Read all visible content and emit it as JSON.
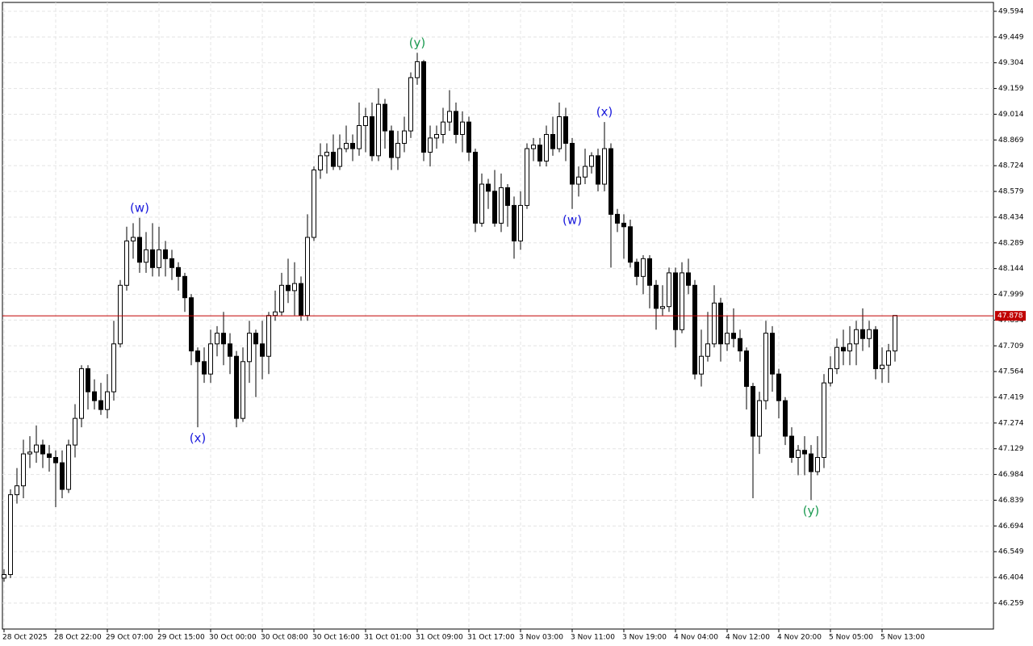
{
  "chart_data": {
    "type": "candlestick",
    "categories": [
      "28 Oct 2025",
      null,
      null,
      null,
      null,
      null,
      null,
      null,
      "28 Oct 22:00",
      null,
      null,
      null,
      null,
      null,
      null,
      null,
      "29 Oct 07:00",
      null,
      null,
      null,
      null,
      null,
      null,
      null,
      "29 Oct 15:00",
      null,
      null,
      null,
      null,
      null,
      null,
      null,
      "30 Oct 00:00",
      null,
      null,
      null,
      null,
      null,
      null,
      null,
      "30 Oct 08:00",
      null,
      null,
      null,
      null,
      null,
      null,
      null,
      "30 Oct 16:00",
      null,
      null,
      null,
      null,
      null,
      null,
      null,
      "31 Oct 01:00",
      null,
      null,
      null,
      null,
      null,
      null,
      null,
      "31 Oct 09:00",
      null,
      null,
      null,
      null,
      null,
      null,
      null,
      "31 Oct 17:00",
      null,
      null,
      null,
      null,
      null,
      null,
      null,
      "3 Nov 03:00",
      null,
      null,
      null,
      null,
      null,
      null,
      null,
      "3 Nov 11:00",
      null,
      null,
      null,
      null,
      null,
      null,
      null,
      "3 Nov 19:00",
      null,
      null,
      null,
      null,
      null,
      null,
      null,
      "4 Nov 04:00",
      null,
      null,
      null,
      null,
      null,
      null,
      null,
      "4 Nov 12:00",
      null,
      null,
      null,
      null,
      null,
      null,
      null,
      "4 Nov 20:00",
      null,
      null,
      null,
      null,
      null,
      null,
      null,
      "5 Nov 05:00",
      null,
      null,
      null,
      null,
      null,
      null,
      null,
      "5 Nov 13:00",
      null,
      null
    ],
    "ohlc": [
      [
        46.4,
        46.45,
        46.38,
        46.42
      ],
      [
        46.42,
        46.9,
        46.4,
        46.87
      ],
      [
        46.87,
        47.02,
        46.82,
        46.92
      ],
      [
        46.92,
        47.18,
        46.85,
        47.1
      ],
      [
        47.1,
        47.2,
        47.02,
        47.11
      ],
      [
        47.11,
        47.26,
        47.05,
        47.15
      ],
      [
        47.15,
        47.18,
        47.02,
        47.1
      ],
      [
        47.1,
        47.15,
        47.0,
        47.08
      ],
      [
        47.08,
        47.12,
        46.8,
        47.05
      ],
      [
        47.05,
        47.12,
        46.85,
        46.9
      ],
      [
        46.9,
        47.18,
        46.88,
        47.15
      ],
      [
        47.15,
        47.38,
        47.08,
        47.3
      ],
      [
        47.3,
        47.6,
        47.25,
        47.58
      ],
      [
        47.58,
        47.6,
        47.35,
        47.45
      ],
      [
        47.45,
        47.52,
        47.35,
        47.4
      ],
      [
        47.4,
        47.5,
        47.32,
        47.35
      ],
      [
        47.35,
        47.55,
        47.3,
        47.45
      ],
      [
        47.45,
        47.85,
        47.4,
        47.72
      ],
      [
        47.72,
        48.08,
        47.7,
        48.05
      ],
      [
        48.05,
        48.38,
        48.02,
        48.3
      ],
      [
        48.3,
        48.4,
        48.2,
        48.32
      ],
      [
        48.32,
        48.43,
        48.12,
        48.18
      ],
      [
        48.18,
        48.35,
        48.12,
        48.25
      ],
      [
        48.25,
        48.4,
        48.1,
        48.15
      ],
      [
        48.15,
        48.38,
        48.1,
        48.25
      ],
      [
        48.25,
        48.3,
        48.1,
        48.2
      ],
      [
        48.2,
        48.25,
        48.08,
        48.15
      ],
      [
        48.15,
        48.18,
        48.02,
        48.1
      ],
      [
        48.1,
        48.12,
        47.9,
        47.98
      ],
      [
        47.98,
        48.0,
        47.6,
        47.68
      ],
      [
        47.68,
        47.7,
        47.25,
        47.62
      ],
      [
        47.62,
        47.7,
        47.5,
        47.55
      ],
      [
        47.55,
        47.8,
        47.5,
        47.72
      ],
      [
        47.72,
        47.82,
        47.65,
        47.78
      ],
      [
        47.78,
        47.9,
        47.6,
        47.72
      ],
      [
        47.72,
        47.78,
        47.55,
        47.65
      ],
      [
        47.65,
        47.68,
        47.25,
        47.3
      ],
      [
        47.3,
        47.7,
        47.28,
        47.62
      ],
      [
        47.62,
        47.85,
        47.5,
        47.78
      ],
      [
        47.78,
        47.8,
        47.42,
        47.72
      ],
      [
        47.72,
        47.85,
        47.52,
        47.65
      ],
      [
        47.65,
        47.9,
        47.55,
        47.88
      ],
      [
        47.88,
        48.02,
        47.85,
        47.9
      ],
      [
        47.9,
        48.12,
        47.88,
        48.05
      ],
      [
        48.05,
        48.2,
        47.95,
        48.02
      ],
      [
        48.02,
        48.18,
        47.88,
        48.06
      ],
      [
        48.06,
        48.1,
        47.85,
        47.88
      ],
      [
        47.88,
        48.45,
        47.85,
        48.32
      ],
      [
        48.32,
        48.72,
        48.3,
        48.7
      ],
      [
        48.7,
        48.85,
        48.65,
        48.78
      ],
      [
        48.78,
        48.85,
        48.68,
        48.8
      ],
      [
        48.8,
        48.9,
        48.7,
        48.72
      ],
      [
        48.72,
        48.9,
        48.7,
        48.82
      ],
      [
        48.82,
        48.95,
        48.8,
        48.85
      ],
      [
        48.85,
        48.9,
        48.75,
        48.82
      ],
      [
        48.82,
        49.08,
        48.78,
        48.95
      ],
      [
        48.95,
        49.05,
        48.8,
        49.0
      ],
      [
        49.0,
        49.08,
        48.75,
        48.78
      ],
      [
        48.78,
        49.16,
        48.75,
        49.07
      ],
      [
        49.07,
        49.1,
        48.82,
        48.92
      ],
      [
        48.92,
        48.95,
        48.7,
        48.77
      ],
      [
        48.77,
        48.92,
        48.7,
        48.85
      ],
      [
        48.85,
        49.0,
        48.8,
        48.92
      ],
      [
        48.92,
        49.25,
        48.88,
        49.22
      ],
      [
        49.22,
        49.36,
        49.18,
        49.31
      ],
      [
        49.31,
        49.32,
        48.75,
        48.8
      ],
      [
        48.8,
        48.95,
        48.72,
        48.88
      ],
      [
        48.88,
        48.95,
        48.82,
        48.9
      ],
      [
        48.9,
        49.05,
        48.85,
        48.97
      ],
      [
        48.97,
        49.15,
        48.92,
        49.03
      ],
      [
        49.03,
        49.08,
        48.85,
        48.9
      ],
      [
        48.9,
        49.03,
        48.8,
        48.97
      ],
      [
        48.97,
        49.0,
        48.75,
        48.8
      ],
      [
        48.8,
        48.82,
        48.35,
        48.4
      ],
      [
        48.4,
        48.68,
        48.38,
        48.62
      ],
      [
        48.62,
        48.65,
        48.48,
        48.58
      ],
      [
        48.58,
        48.7,
        48.38,
        48.4
      ],
      [
        48.4,
        48.68,
        48.35,
        48.6
      ],
      [
        48.6,
        48.62,
        48.38,
        48.5
      ],
      [
        48.5,
        48.55,
        48.2,
        48.3
      ],
      [
        48.3,
        48.58,
        48.25,
        48.5
      ],
      [
        48.5,
        48.85,
        48.48,
        48.82
      ],
      [
        48.82,
        48.88,
        48.75,
        48.84
      ],
      [
        48.84,
        48.88,
        48.72,
        48.75
      ],
      [
        48.75,
        48.95,
        48.72,
        48.9
      ],
      [
        48.9,
        49.0,
        48.78,
        48.82
      ],
      [
        48.82,
        49.08,
        48.8,
        49.0
      ],
      [
        49.0,
        49.05,
        48.75,
        48.85
      ],
      [
        48.85,
        48.88,
        48.48,
        48.62
      ],
      [
        48.62,
        48.72,
        48.55,
        48.66
      ],
      [
        48.66,
        48.82,
        48.62,
        48.72
      ],
      [
        48.72,
        48.8,
        48.68,
        48.78
      ],
      [
        48.78,
        48.82,
        48.58,
        48.62
      ],
      [
        48.62,
        48.97,
        48.58,
        48.82
      ],
      [
        48.82,
        48.85,
        48.15,
        48.45
      ],
      [
        48.45,
        48.48,
        48.35,
        48.4
      ],
      [
        48.4,
        48.45,
        48.2,
        48.38
      ],
      [
        48.38,
        48.42,
        48.15,
        48.18
      ],
      [
        48.18,
        48.2,
        48.05,
        48.1
      ],
      [
        48.1,
        48.22,
        48.0,
        48.2
      ],
      [
        48.2,
        48.22,
        47.92,
        48.05
      ],
      [
        48.05,
        48.08,
        47.8,
        47.92
      ],
      [
        47.92,
        48.05,
        47.88,
        47.93
      ],
      [
        47.93,
        48.15,
        47.9,
        48.12
      ],
      [
        48.12,
        48.15,
        47.7,
        47.8
      ],
      [
        47.8,
        48.18,
        47.78,
        48.12
      ],
      [
        48.12,
        48.2,
        48.0,
        48.05
      ],
      [
        48.05,
        48.08,
        47.52,
        47.55
      ],
      [
        47.55,
        47.8,
        47.48,
        47.65
      ],
      [
        47.65,
        47.9,
        47.62,
        47.72
      ],
      [
        47.72,
        48.05,
        47.7,
        47.95
      ],
      [
        47.95,
        47.98,
        47.62,
        47.72
      ],
      [
        47.72,
        47.88,
        47.68,
        47.78
      ],
      [
        47.78,
        47.92,
        47.7,
        47.75
      ],
      [
        47.75,
        47.8,
        47.62,
        47.68
      ],
      [
        47.68,
        47.7,
        47.35,
        47.48
      ],
      [
        47.48,
        47.5,
        46.85,
        47.2
      ],
      [
        47.2,
        47.45,
        47.1,
        47.4
      ],
      [
        47.4,
        47.85,
        47.35,
        47.78
      ],
      [
        47.78,
        47.82,
        47.45,
        47.55
      ],
      [
        47.55,
        47.58,
        47.3,
        47.4
      ],
      [
        47.4,
        47.42,
        47.15,
        47.2
      ],
      [
        47.2,
        47.25,
        47.05,
        47.08
      ],
      [
        47.08,
        47.15,
        46.98,
        47.12
      ],
      [
        47.12,
        47.2,
        46.98,
        47.1
      ],
      [
        47.1,
        47.15,
        46.84,
        47.0
      ],
      [
        47.0,
        47.2,
        46.98,
        47.08
      ],
      [
        47.08,
        47.55,
        47.02,
        47.5
      ],
      [
        47.5,
        47.65,
        47.48,
        47.58
      ],
      [
        47.58,
        47.75,
        47.55,
        47.7
      ],
      [
        47.7,
        47.8,
        47.6,
        47.68
      ],
      [
        47.68,
        47.82,
        47.6,
        47.72
      ],
      [
        47.72,
        47.85,
        47.6,
        47.8
      ],
      [
        47.8,
        47.92,
        47.68,
        47.75
      ],
      [
        47.75,
        47.85,
        47.7,
        47.8
      ],
      [
        47.8,
        47.82,
        47.52,
        47.58
      ],
      [
        47.58,
        47.7,
        47.5,
        47.6
      ],
      [
        47.6,
        47.72,
        47.5,
        47.68
      ],
      [
        47.68,
        47.88,
        47.62,
        47.88
      ]
    ],
    "ylim": [
      46.113,
      49.644
    ],
    "yticks": [
      49.594,
      49.449,
      49.304,
      49.159,
      49.014,
      48.869,
      48.724,
      48.579,
      48.434,
      48.289,
      48.144,
      47.999,
      47.854,
      47.709,
      47.564,
      47.419,
      47.274,
      47.129,
      46.984,
      46.839,
      46.694,
      46.549,
      46.404,
      46.259
    ],
    "grid": true,
    "up_color": "#ffffff",
    "down_color": "#000000",
    "current_price": {
      "value": 47.878,
      "color": "#c00000"
    },
    "annotations": [
      {
        "text": "(w)",
        "candle": 21,
        "side": "high",
        "color": "#1a1adc"
      },
      {
        "text": "(x)",
        "candle": 30,
        "side": "low",
        "color": "#1a1adc"
      },
      {
        "text": "(y)",
        "candle": 64,
        "side": "high",
        "color": "#1a9a50"
      },
      {
        "text": "(w)",
        "candle": 88,
        "side": "low",
        "color": "#1a1adc"
      },
      {
        "text": "(x)",
        "candle": 93,
        "side": "high",
        "color": "#1a1adc"
      },
      {
        "text": "(y)",
        "candle": 125,
        "side": "low",
        "color": "#1a9a50"
      }
    ]
  }
}
